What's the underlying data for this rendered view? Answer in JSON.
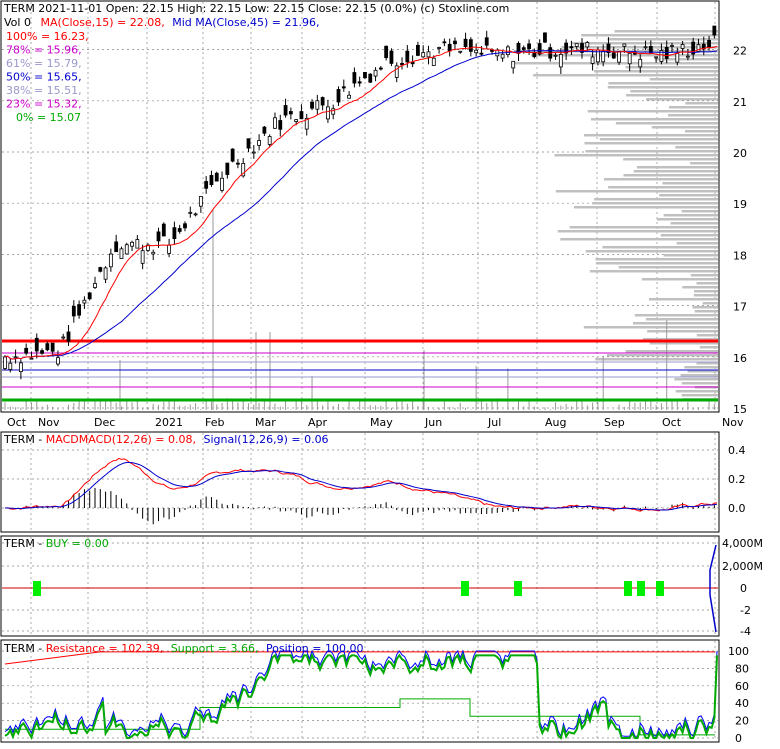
{
  "colors": {
    "price_up": "#ffffff",
    "price_down": "#000000",
    "ma15": "#ff0000",
    "ma45": "#0000cc",
    "resistance": "#ff0000",
    "support": "#00aa00",
    "position": "#0000ff",
    "buy_marker": "#00ee00",
    "volume_profile": "#c0c0c0",
    "fib_100": "#ff0000",
    "fib_78": "#cc00cc",
    "fib_61": "#9999cc",
    "fib_50": "#0000cc",
    "fib_38": "#9999cc",
    "fib_23": "#cc00cc",
    "fib_0": "#00aa00"
  },
  "header": {
    "line1": "TERM  2021-11-01 Open: 22.15  High: 22.15  Low: 22.15  Close: 22.15 (0.0%)  (c) Stoxline.com",
    "vol_label": "Vol 0",
    "ma15_label": "MA(Close,15) = 22.08,",
    "ma45_label": "Mid MA(Close,45) = 21.96,"
  },
  "fib_labels": [
    {
      "text": "100% = 16.23,",
      "color": "#ff0000"
    },
    {
      "text": "78% = 15.96,",
      "color": "#cc00cc"
    },
    {
      "text": "61% = 15.79,",
      "color": "#9999cc"
    },
    {
      "text": "50% = 15.65,",
      "color": "#0000cc"
    },
    {
      "text": "38% = 15.51,",
      "color": "#9999cc"
    },
    {
      "text": "23% = 15.32,",
      "color": "#cc00cc"
    },
    {
      "text": "0% = 15.07",
      "color": "#00aa00"
    }
  ],
  "x_axis_labels": [
    "Oct",
    "Nov",
    "Dec",
    "2021",
    "Feb",
    "Mar",
    "Apr",
    "May",
    "Jun",
    "Jul",
    "Aug",
    "Sep",
    "Oct",
    "Nov"
  ],
  "macd_panel": {
    "term": "TERM - ",
    "macd": "MACD",
    "label": "MACD(12,26) = 0.08,",
    "signal": "Signal(12,26,9) = 0.06"
  },
  "buy_panel": {
    "term": "TERM - ",
    "label": "BUY = 0.00"
  },
  "sr_panel": {
    "term": "TERM - ",
    "resistance": "Resistance = 102.39,",
    "support": "Support = 3.66,",
    "position": "Position = 100.00"
  },
  "chart_data": [
    {
      "type": "candlestick",
      "title": "TERM",
      "x_range": [
        "2020-10-01",
        "2021-11-01"
      ],
      "ylim": [
        14.9,
        22.6
      ],
      "y_ticks": [
        15,
        16,
        17,
        18,
        19,
        20,
        21,
        22
      ],
      "monthly_close_estimates": {
        "months": [
          "Oct",
          "Nov",
          "Dec",
          "2021",
          "Feb",
          "Mar",
          "Apr",
          "May",
          "Jun",
          "Jul",
          "Aug",
          "Sep",
          "Oct",
          "Nov"
        ],
        "values": [
          16.0,
          16.1,
          18.2,
          18.2,
          19.6,
          20.6,
          21.0,
          21.8,
          22.0,
          21.9,
          22.0,
          22.0,
          21.9,
          22.15
        ]
      },
      "ma15_last": 22.08,
      "ma45_last": 21.96,
      "fib_levels": {
        "100": 16.23,
        "78": 15.96,
        "61": 15.79,
        "50": 15.65,
        "38": 15.51,
        "23": 15.32,
        "0": 15.07
      },
      "last_bar": {
        "date": "2021-11-01",
        "open": 22.15,
        "high": 22.15,
        "low": 22.15,
        "close": 22.15,
        "change_pct": 0.0,
        "volume": 0
      }
    },
    {
      "type": "line",
      "title": "MACD(12,26)",
      "ylim": [
        -0.3,
        0.5
      ],
      "y_ticks": [
        0.0,
        0.2,
        0.4
      ],
      "macd_last": 0.08,
      "signal_last": 0.06
    },
    {
      "type": "bar",
      "title": "BUY",
      "y_ticks_labels": [
        "4,000M",
        "2,000M",
        "0",
        "-2",
        "-4"
      ],
      "buy_last": 0.0,
      "buy_signal_months": [
        "Oct",
        "Jun",
        "Jul",
        "Sep",
        "Sep",
        "Oct"
      ]
    },
    {
      "type": "line",
      "title": "Resistance / Support / Position",
      "ylim": [
        0,
        105
      ],
      "y_ticks": [
        0,
        20,
        40,
        60,
        80,
        100
      ],
      "resistance_last": 102.39,
      "support_last": 3.66,
      "position_last": 100.0
    }
  ]
}
